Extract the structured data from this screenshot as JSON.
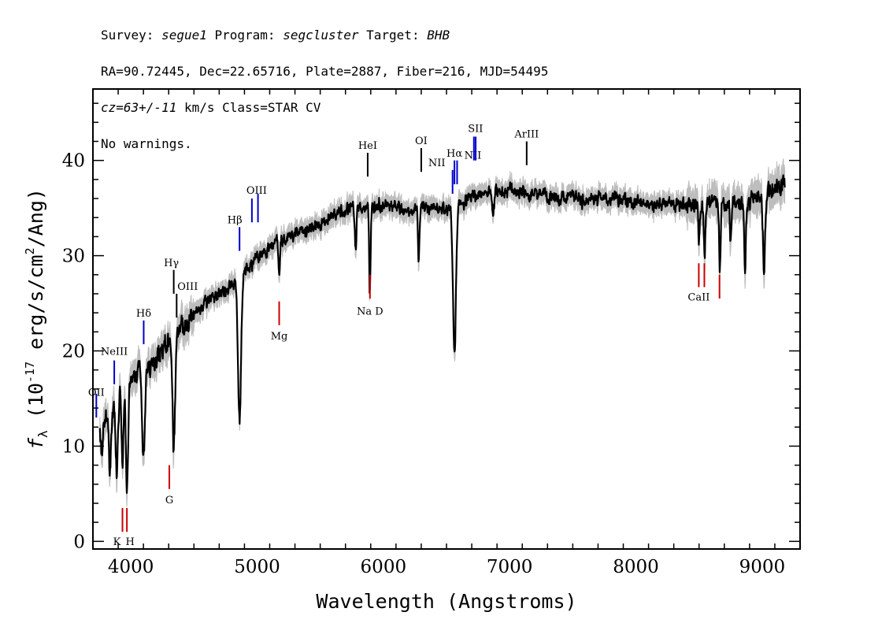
{
  "header": {
    "survey_label": "Survey: ",
    "survey": "segue1",
    "program_label": " Program: ",
    "program": "segcluster",
    "target_label": " Target: ",
    "target": "BHB",
    "line2": "RA=90.72445, Dec=22.65716, Plate=2887, Fiber=216, MJD=54495",
    "cz": "cz=63+/-11",
    "line3_rest": " km/s Class=STAR CV",
    "line4": "No warnings."
  },
  "chart_data": {
    "type": "line",
    "title": "",
    "xlabel": "Wavelength (Angstroms)",
    "ylabel_prefix": "f",
    "ylabel_sub": "λ",
    "ylabel_mid": " (10",
    "ylabel_exp": "-17",
    "ylabel_rest": " erg/s/cm",
    "ylabel_sq": "2",
    "ylabel_end": "/Ang)",
    "xlim": [
      3700,
      9300
    ],
    "ylim": [
      -0.8,
      47.5
    ],
    "xticks": [
      4000,
      5000,
      6000,
      7000,
      8000,
      9000
    ],
    "xtick_labels": [
      "4000",
      "5000",
      "6000",
      "7000",
      "8000",
      "9000"
    ],
    "yticks": [
      0,
      10,
      20,
      30,
      40
    ],
    "ytick_labels": [
      "0",
      "10",
      "20",
      "30",
      "40"
    ],
    "flux_color": "#000000",
    "error_color": "#bdbdbd",
    "continuum": [
      [
        3750,
        12.5
      ],
      [
        3850,
        14
      ],
      [
        3950,
        16
      ],
      [
        4050,
        17.5
      ],
      [
        4150,
        18.5
      ],
      [
        4250,
        20
      ],
      [
        4350,
        21.5
      ],
      [
        4450,
        23
      ],
      [
        4550,
        24.5
      ],
      [
        4650,
        25.8
      ],
      [
        4750,
        26.5
      ],
      [
        4850,
        27.5
      ],
      [
        4950,
        29
      ],
      [
        5050,
        30.5
      ],
      [
        5150,
        31.5
      ],
      [
        5300,
        32.3
      ],
      [
        5450,
        33
      ],
      [
        5600,
        34.2
      ],
      [
        5800,
        35.2
      ],
      [
        6000,
        35.2
      ],
      [
        6200,
        35
      ],
      [
        6400,
        35
      ],
      [
        6550,
        34.8
      ],
      [
        6650,
        35.8
      ],
      [
        6800,
        36.8
      ],
      [
        7000,
        36.8
      ],
      [
        7200,
        36.3
      ],
      [
        7400,
        36.1
      ],
      [
        7600,
        35.9
      ],
      [
        7800,
        35.9
      ],
      [
        8000,
        35.6
      ],
      [
        8200,
        35.6
      ],
      [
        8400,
        35.4
      ],
      [
        8600,
        35.4
      ],
      [
        8800,
        35.6
      ],
      [
        9000,
        36
      ],
      [
        9100,
        36.8
      ],
      [
        9180,
        37.8
      ]
    ],
    "absorption_features": [
      {
        "wave": 3770,
        "depth": 3.5,
        "width": 8
      },
      {
        "wave": 3835,
        "depth": 6.5,
        "width": 8
      },
      {
        "wave": 3889,
        "depth": 8,
        "width": 9
      },
      {
        "wave": 3934,
        "depth": 8,
        "width": 7
      },
      {
        "wave": 3970,
        "depth": 11,
        "width": 9
      },
      {
        "wave": 4101,
        "depth": 9,
        "width": 11
      },
      {
        "wave": 4340,
        "depth": 11.5,
        "width": 10
      },
      {
        "wave": 4861,
        "depth": 15,
        "width": 12
      },
      {
        "wave": 5175,
        "depth": 4,
        "width": 6
      },
      {
        "wave": 5780,
        "depth": 5,
        "width": 6
      },
      {
        "wave": 5893,
        "depth": 9,
        "width": 6
      },
      {
        "wave": 6280,
        "depth": 6,
        "width": 5
      },
      {
        "wave": 6563,
        "depth": 15.5,
        "width": 12
      },
      {
        "wave": 6870,
        "depth": 2,
        "width": 8
      },
      {
        "wave": 8500,
        "depth": 4.5,
        "width": 6
      },
      {
        "wave": 8544,
        "depth": 5.5,
        "width": 6
      },
      {
        "wave": 8664,
        "depth": 6.5,
        "width": 6
      },
      {
        "wave": 8750,
        "depth": 4.5,
        "width": 6
      },
      {
        "wave": 8863,
        "depth": 7,
        "width": 6
      },
      {
        "wave": 9015,
        "depth": 8,
        "width": 8
      }
    ],
    "line_markers": [
      {
        "label": "OII",
        "wave": 3727,
        "y1": 13,
        "y2": 15.5,
        "color": "#0000cc",
        "label_y": 15.3,
        "dx": 0
      },
      {
        "label": "NeIII",
        "wave": 3869,
        "y1": 16.5,
        "y2": 19,
        "color": "#0000cc",
        "label_y": 19.6,
        "dx": 0
      },
      {
        "label": "Hδ",
        "wave": 4102,
        "y1": 20.7,
        "y2": 23.2,
        "color": "#0000cc",
        "label_y": 23.6,
        "dx": 0
      },
      {
        "label": "Hγ",
        "wave": 4340,
        "y1": 26,
        "y2": 28.5,
        "color": "#000000",
        "label_y": 28.9,
        "dx": -3
      },
      {
        "label": "OIII",
        "wave": 4363,
        "y1": 23.5,
        "y2": 26,
        "color": "#000000",
        "label_y": 26.4,
        "dx": 14
      },
      {
        "label": "Hβ",
        "wave": 4861,
        "y1": 30.5,
        "y2": 33,
        "color": "#0000cc",
        "label_y": 33.4,
        "dx": -6
      },
      {
        "label": "OIII",
        "wave": 4959,
        "y1": 33.5,
        "y2": 36,
        "color": "#0000cc",
        "label_y": 36.5,
        "dx": 6
      },
      {
        "label": "OIII",
        "wave": 5007,
        "y1": 33.5,
        "y2": 36.5,
        "color": "#0000cc",
        "label_y": 36.5,
        "dx": 0,
        "hide_label": true
      },
      {
        "label": "HeI",
        "wave": 5876,
        "y1": 38.3,
        "y2": 40.8,
        "color": "#000000",
        "label_y": 41.2,
        "dx": 0
      },
      {
        "label": "OI",
        "wave": 6300,
        "y1": 38.8,
        "y2": 41.3,
        "color": "#000000",
        "label_y": 41.7,
        "dx": 0
      },
      {
        "label": "NII",
        "wave": 6548,
        "y1": 36.5,
        "y2": 39,
        "color": "#0000cc",
        "label_y": 39.4,
        "dx": -20
      },
      {
        "label": "Hα",
        "wave": 6563,
        "y1": 37.5,
        "y2": 40,
        "color": "#0000cc",
        "label_y": 40.4,
        "dx": 0
      },
      {
        "label": "NII",
        "wave": 6584,
        "y1": 37.5,
        "y2": 40,
        "color": "#0000cc",
        "label_y": 40.2,
        "dx": 20
      },
      {
        "label": "SII",
        "wave": 6717,
        "y1": 40,
        "y2": 42.5,
        "color": "#0000cc",
        "label_y": 43.0,
        "dx": 2
      },
      {
        "label": "SII",
        "wave": 6731,
        "y1": 40,
        "y2": 42.5,
        "color": "#0000cc",
        "label_y": 43.0,
        "dx": 0,
        "hide_label": true
      },
      {
        "label": "ArIII",
        "wave": 7135,
        "y1": 39.5,
        "y2": 42,
        "color": "#000000",
        "label_y": 42.4,
        "dx": 0
      },
      {
        "label": "K",
        "wave": 3934,
        "y1": 1,
        "y2": 3.5,
        "color": "#cc0000",
        "label_y": -0.4,
        "dx": -7
      },
      {
        "label": "H",
        "wave": 3969,
        "y1": 1,
        "y2": 3.5,
        "color": "#cc0000",
        "label_y": -0.4,
        "dx": 4
      },
      {
        "label": "G",
        "wave": 4305,
        "y1": 5.5,
        "y2": 8,
        "color": "#cc0000",
        "label_y": 4,
        "dx": 0
      },
      {
        "label": "Mg",
        "wave": 5175,
        "y1": 22.7,
        "y2": 25.2,
        "color": "#cc0000",
        "label_y": 21.2,
        "dx": 0
      },
      {
        "label": "Na D",
        "wave": 5894,
        "y1": 25.5,
        "y2": 28,
        "color": "#cc0000",
        "label_y": 23.8,
        "dx": 0
      },
      {
        "label": "CaII",
        "wave": 8498,
        "y1": 26.7,
        "y2": 29.2,
        "color": "#cc0000",
        "label_y": 25.3,
        "dx": 0
      },
      {
        "label": "CaII",
        "wave": 8542,
        "y1": 26.7,
        "y2": 29.2,
        "color": "#cc0000",
        "label_y": 25.3,
        "dx": 0,
        "hide_label": true
      },
      {
        "label": "CaII",
        "wave": 8662,
        "y1": 25.5,
        "y2": 28,
        "color": "#cc0000",
        "label_y": 25.3,
        "dx": 0,
        "hide_label": true
      }
    ]
  }
}
